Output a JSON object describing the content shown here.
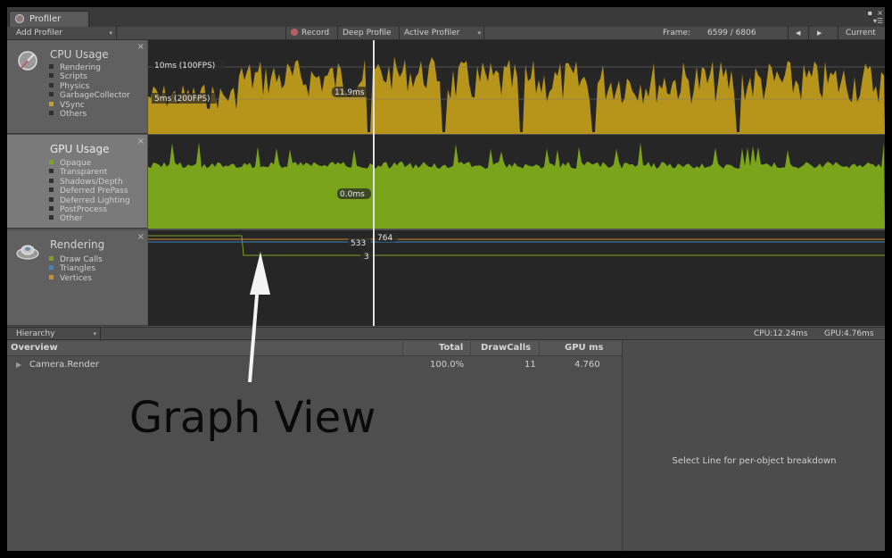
{
  "window": {
    "tab_label": "Profiler",
    "ctl_min": "▪",
    "ctl_close": "×",
    "ctl_menu": "▾☰"
  },
  "toolbar": {
    "add_profiler": "Add Profiler",
    "record": "Record",
    "deep_profile": "Deep Profile",
    "active_profiler": "Active Profiler",
    "frame_label": "Frame:",
    "frame_value": "6599 / 6806",
    "prev": "◀",
    "next": "▶",
    "current": "Current"
  },
  "modules": [
    {
      "title": "CPU Usage",
      "items": [
        {
          "label": "Rendering",
          "color": "#2f2f2f"
        },
        {
          "label": "Scripts",
          "color": "#2f2f2f"
        },
        {
          "label": "Physics",
          "color": "#2f2f2f"
        },
        {
          "label": "GarbageCollector",
          "color": "#2f2f2f"
        },
        {
          "label": "VSync",
          "color": "#c8a21a"
        },
        {
          "label": "Others",
          "color": "#2f2f2f"
        }
      ],
      "guides": [
        "10ms (100FPS)",
        "5ms (200FPS)"
      ],
      "readout": "11.9ms"
    },
    {
      "title": "GPU Usage",
      "items": [
        {
          "label": "Opaque",
          "color": "#7aa51a"
        },
        {
          "label": "Transparent",
          "color": "#2f2f2f"
        },
        {
          "label": "Shadows/Depth",
          "color": "#2f2f2f"
        },
        {
          "label": "Deferred PrePass",
          "color": "#2f2f2f"
        },
        {
          "label": "Deferred Lighting",
          "color": "#2f2f2f"
        },
        {
          "label": "PostProcess",
          "color": "#2f2f2f"
        },
        {
          "label": "Other",
          "color": "#2f2f2f"
        }
      ],
      "readout": "0.0ms"
    },
    {
      "title": "Rendering",
      "items": [
        {
          "label": "Draw Calls",
          "color": "#7aa51a"
        },
        {
          "label": "Triangles",
          "color": "#3f86c6"
        },
        {
          "label": "Vertices",
          "color": "#d08a2a"
        }
      ],
      "readouts": {
        "top": "764",
        "mid": "533",
        "low": "3"
      }
    }
  ],
  "colors": {
    "cpu": "#c8a21a",
    "gpu": "#7aa51a",
    "cursor": "#e8e8e8"
  },
  "hierarchy": {
    "view_mode": "Hierarchy",
    "cpu_time": "CPU:12.24ms",
    "gpu_time": "GPU:4.76ms",
    "columns": [
      "Overview",
      "Total",
      "DrawCalls",
      "GPU ms"
    ],
    "rows": [
      {
        "name": "Camera.Render",
        "total": "100.0%",
        "drawcalls": "11",
        "gpu_ms": "4.760"
      }
    ],
    "detail_hint": "Select Line for per-object breakdown"
  },
  "annotation": {
    "text": "Graph View"
  }
}
